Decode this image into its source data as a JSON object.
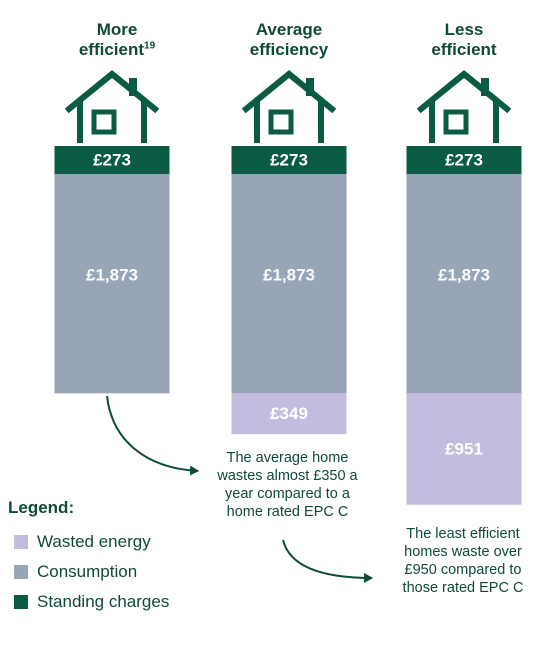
{
  "colors": {
    "standing": "#0b5b44",
    "consumption": "#98a5b6",
    "wasted": "#c3bcdf",
    "text": "#0f4a37"
  },
  "columns": [
    {
      "title_line1": "More",
      "title_line2": "efficient",
      "footnote": "19"
    },
    {
      "title_line1": "Average",
      "title_line2": "efficiency",
      "footnote": ""
    },
    {
      "title_line1": "Less",
      "title_line2": "efficient",
      "footnote": ""
    }
  ],
  "chart_data": {
    "type": "bar",
    "stacked": true,
    "categories": [
      "More efficient",
      "Average efficiency",
      "Less efficient"
    ],
    "series": [
      {
        "name": "Standing charges",
        "values": [
          273,
          273,
          273
        ],
        "labels": [
          "£273",
          "£273",
          "£273"
        ]
      },
      {
        "name": "Consumption",
        "values": [
          1873,
          1873,
          1873
        ],
        "labels": [
          "£1,873",
          "£1,873",
          "£1,873"
        ]
      },
      {
        "name": "Wasted energy",
        "values": [
          0,
          349,
          951
        ],
        "labels": [
          "",
          "£349",
          "£951"
        ]
      }
    ]
  },
  "annotations": {
    "average": [
      "The average home",
      "wastes almost £350 a",
      "year compared to a",
      "home rated EPC C"
    ],
    "least": [
      "The least efficient",
      "homes waste over",
      "£950 compared to",
      "those rated EPC C"
    ]
  },
  "legend": {
    "title": "Legend:",
    "items": [
      {
        "label": "Wasted energy",
        "color": "#c3bcdf"
      },
      {
        "label": "Consumption",
        "color": "#98a5b6"
      },
      {
        "label": "Standing charges",
        "color": "#0b5b44"
      }
    ]
  }
}
